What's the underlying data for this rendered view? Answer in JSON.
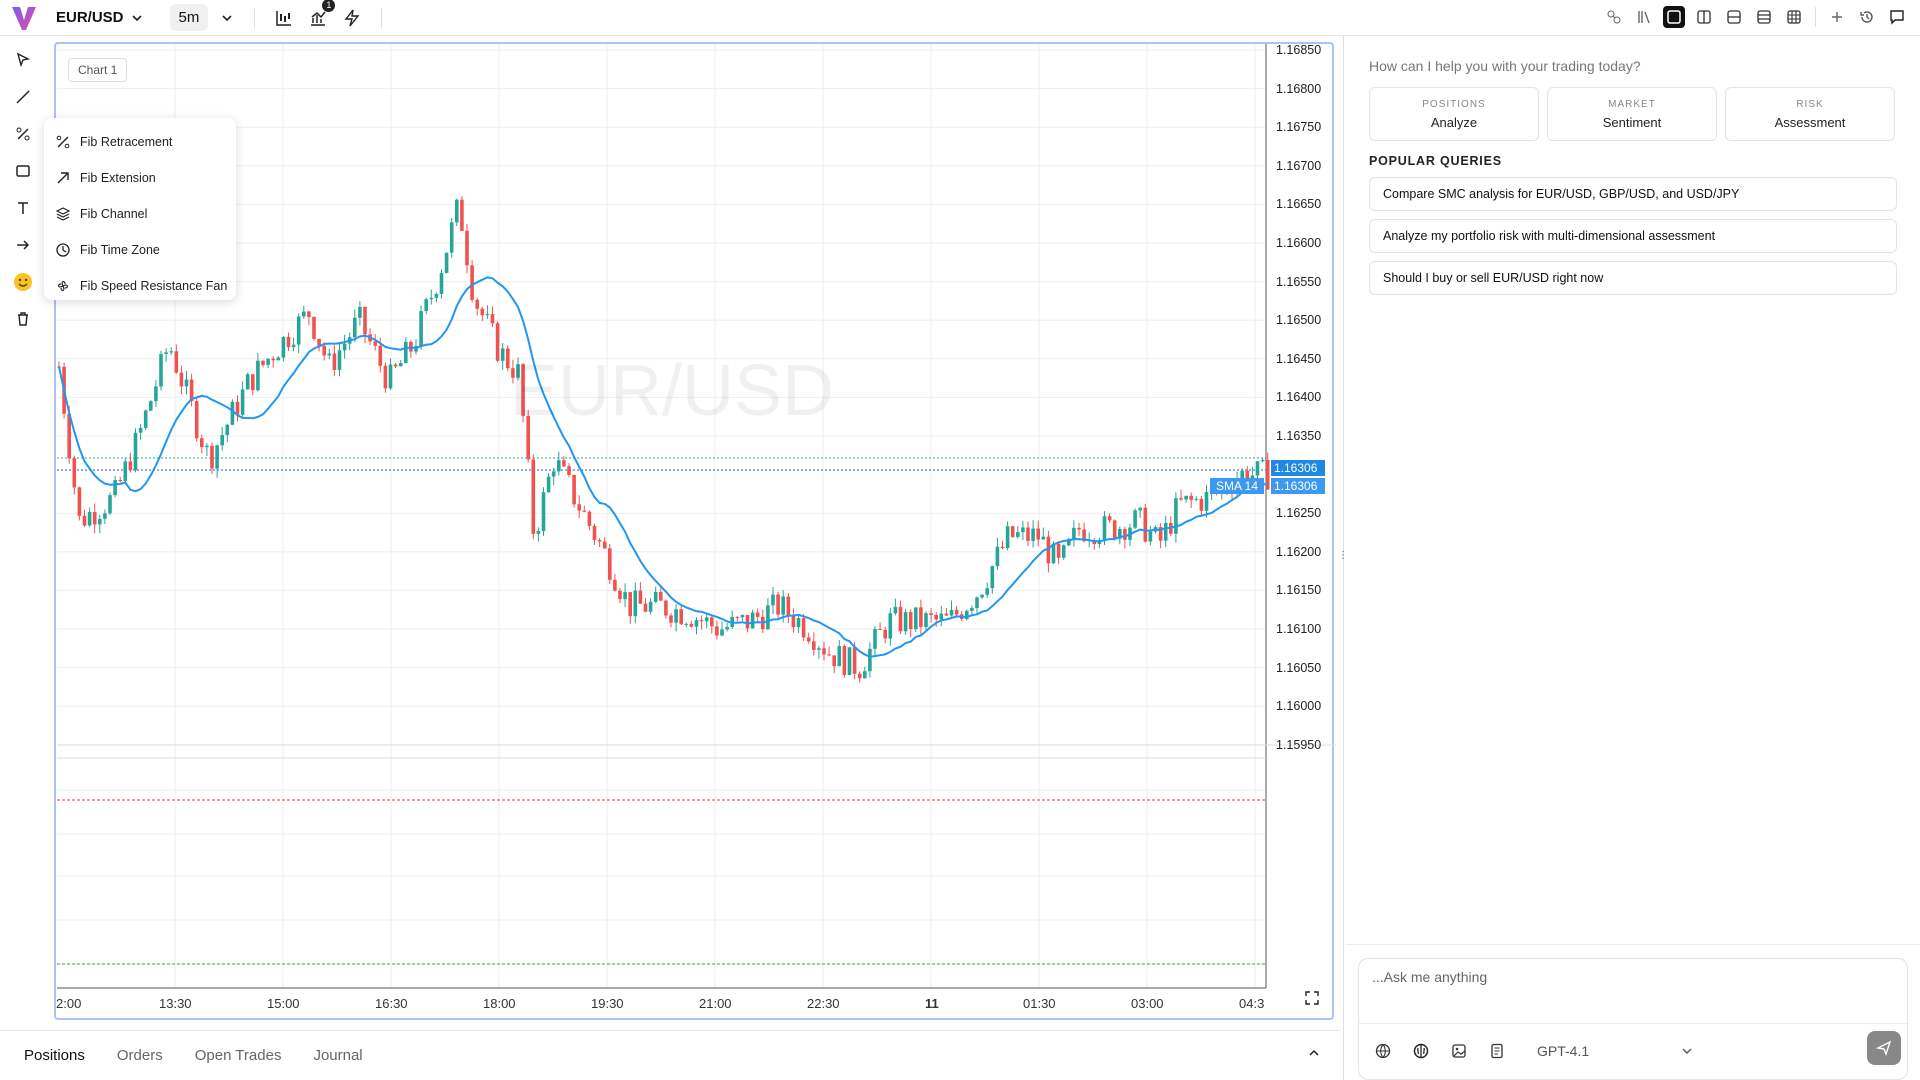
{
  "header": {
    "symbol": "EUR/USD",
    "timeframe": "5m",
    "indicator_badge": "1"
  },
  "chart": {
    "label": "Chart 1",
    "watermark": "EUR/USD",
    "price_ticks": [
      "1.16850",
      "1.16800",
      "1.16750",
      "1.16700",
      "1.16650",
      "1.16600",
      "1.16550",
      "1.16500",
      "1.16450",
      "1.16400",
      "1.16350",
      "1.16250",
      "1.16200",
      "1.16150",
      "1.16100",
      "1.16050",
      "1.16000",
      "1.15950"
    ],
    "last_price": "1.16306",
    "sma_label": "SMA 14",
    "sma_value": "1.16306",
    "time_ticks": [
      "2:00",
      "13:30",
      "15:00",
      "16:30",
      "18:00",
      "19:30",
      "21:00",
      "22:30",
      "11",
      "01:30",
      "03:00",
      "04:3"
    ]
  },
  "drawing_menu": {
    "items": [
      {
        "label": "Fib Retracement",
        "icon": "percent-icon"
      },
      {
        "label": "Fib Extension",
        "icon": "arrow-up-right-icon"
      },
      {
        "label": "Fib Channel",
        "icon": "layers-icon"
      },
      {
        "label": "Fib Time Zone",
        "icon": "clock-icon"
      },
      {
        "label": "Fib Speed Resistance Fan",
        "icon": "fan-icon"
      }
    ]
  },
  "bottom_tabs": [
    "Positions",
    "Orders",
    "Open Trades",
    "Journal"
  ],
  "assistant": {
    "prompt": "How can I help you with your trading today?",
    "cards": [
      {
        "kicker": "POSITIONS",
        "title": "Analyze"
      },
      {
        "kicker": "MARKET",
        "title": "Sentiment"
      },
      {
        "kicker": "RISK",
        "title": "Assessment"
      }
    ],
    "popular_title": "POPULAR QUERIES",
    "queries": [
      "Compare SMC analysis for EUR/USD, GBP/USD, and USD/JPY",
      "Analyze my portfolio risk with multi-dimensional assessment",
      "Should I buy or sell EUR/USD right now"
    ],
    "input_placeholder": "...Ask me anything",
    "model": "GPT-4.1"
  },
  "colors": {
    "up": "#26a69a",
    "down": "#ef5350",
    "sma": "#2196f3",
    "accent": "#1e88e5"
  }
}
